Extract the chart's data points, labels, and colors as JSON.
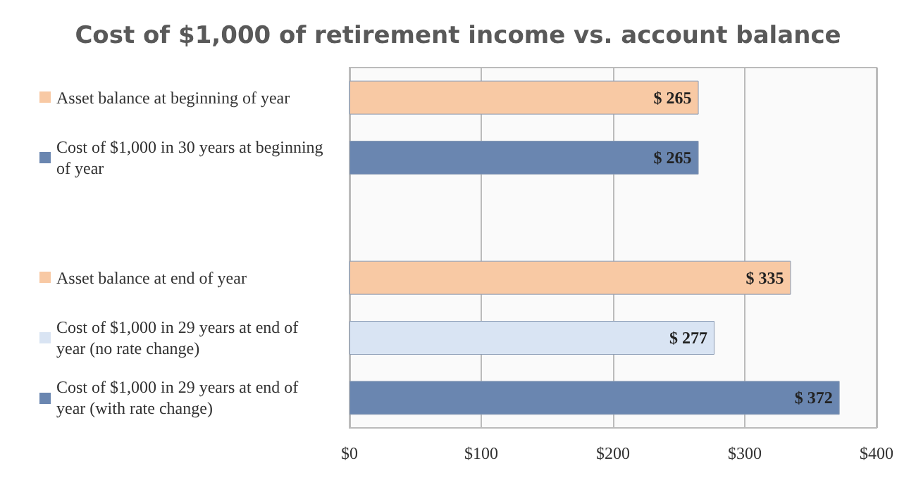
{
  "chart_data": {
    "type": "bar",
    "orientation": "horizontal",
    "title": "Cost of $1,000 of retirement income vs. account balance",
    "categories": [
      "Asset balance at beginning of year",
      "Cost of $1,000 in 30 years at beginning of year",
      null,
      "Asset balance at end of year",
      "Cost of $1,000 in 29 years at end of year (no rate change)",
      "Cost of $1,000 in 29 years at end of year (with rate change)"
    ],
    "values": [
      265,
      265,
      null,
      335,
      277,
      372
    ],
    "colors": [
      "#f8c9a4",
      "#6a86b0",
      "#ffffff",
      "#f8c9a4",
      "#d9e4f3",
      "#6a86b0"
    ],
    "value_labels": [
      "$ 265",
      "$ 265",
      null,
      "$ 335",
      "$ 277",
      "$ 372"
    ],
    "xlim": [
      0,
      400
    ],
    "xticks": [
      {
        "value": 0,
        "label": "$0"
      },
      {
        "value": 100,
        "label": "$100"
      },
      {
        "value": 200,
        "label": "$200"
      },
      {
        "value": 300,
        "label": "$300"
      },
      {
        "value": 400,
        "label": "$400"
      }
    ],
    "grid": "x"
  }
}
